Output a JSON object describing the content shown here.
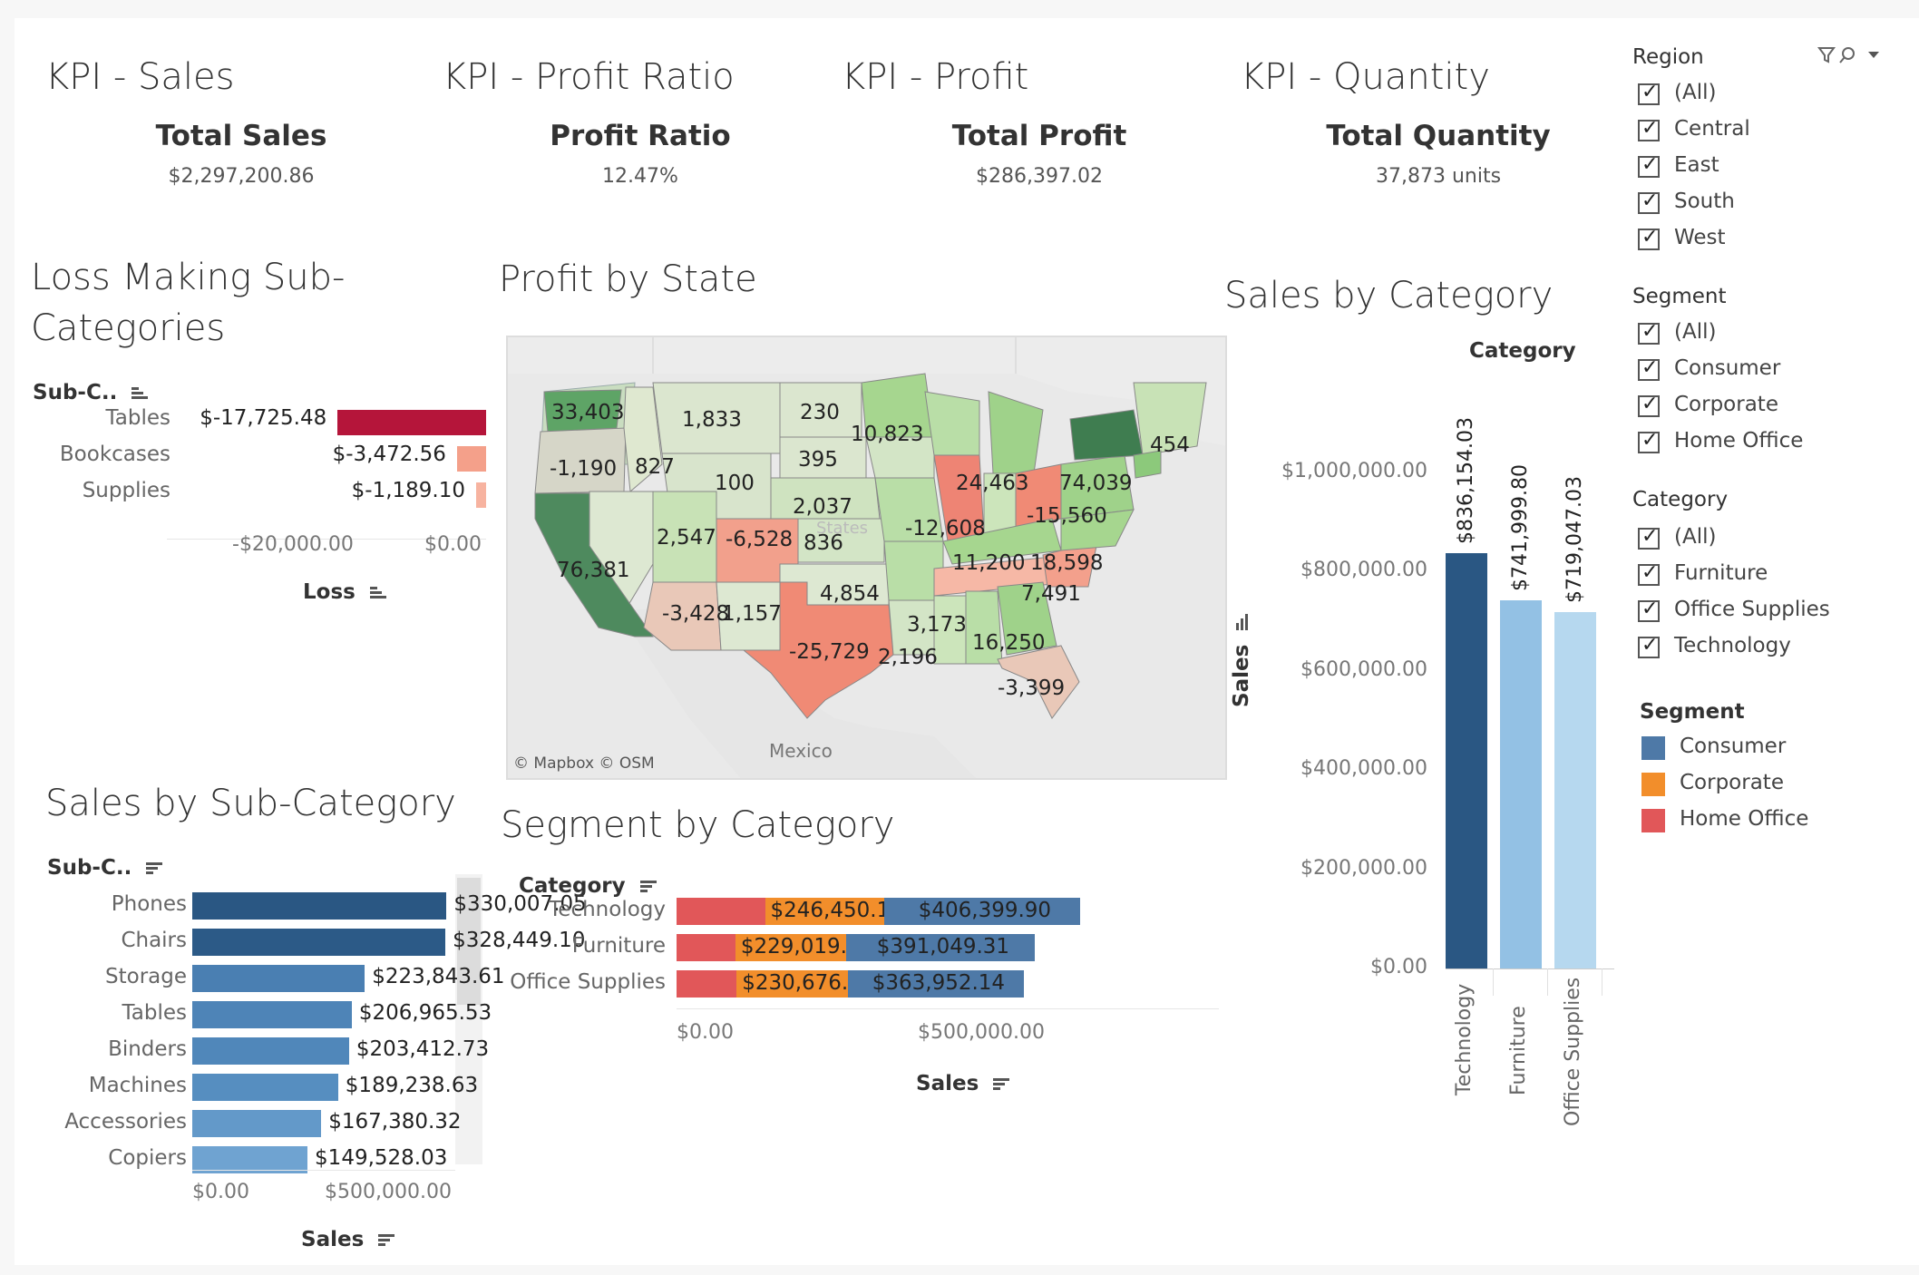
{
  "kpis": [
    {
      "title": "KPI - Sales",
      "label": "Total Sales",
      "value": "$2,297,200.86"
    },
    {
      "title": "KPI - Profit Ratio",
      "label": "Profit Ratio",
      "value": "12.47%"
    },
    {
      "title": "KPI - Profit",
      "label": "Total Profit",
      "value": "$286,397.02"
    },
    {
      "title": "KPI - Quantity",
      "label": "Total Quantity",
      "value": "37,873 units"
    }
  ],
  "loss": {
    "title": "Loss Making Sub-Categories",
    "header": "Sub-C..",
    "axis_label": "Loss",
    "ticks": [
      "-$20,000.00",
      "$0.00"
    ],
    "rows": [
      {
        "label": "Tables",
        "value": "$-17,725.48",
        "num": -17725.48,
        "color": "#b5153a"
      },
      {
        "label": "Bookcases",
        "value": "$-3,472.56",
        "num": -3472.56,
        "color": "#f4a08a"
      },
      {
        "label": "Supplies",
        "value": "$-1,189.10",
        "num": -1189.1,
        "color": "#f7b3a0"
      }
    ]
  },
  "map": {
    "title": "Profit by State",
    "attribution": "© Mapbox  © OSM",
    "country_label": "Mexico",
    "states_label": "States",
    "labels": [
      "33,403",
      "1,833",
      "230",
      "10,823",
      "454",
      "-1,190",
      "827",
      "395",
      "100",
      "24,463",
      "74,039",
      "2,037",
      "-12,608",
      "-15,560",
      "2,547",
      "-6,528",
      "836",
      "11,200",
      "18,598",
      "76,381",
      "4,854",
      "7,491",
      "-3,428",
      "1,157",
      "3,173",
      "-25,729",
      "2,196",
      "16,250",
      "-3,399"
    ]
  },
  "cat": {
    "title": "Sales by Category",
    "header": "Category",
    "axis_label": "Sales",
    "ticks": [
      "$1,000,000.00",
      "$800,000.00",
      "$600,000.00",
      "$400,000.00",
      "$200,000.00",
      "$0.00"
    ],
    "bars": [
      {
        "label": "Technology",
        "value": "$836,154.03",
        "num": 836154.03,
        "color": "#2a5783"
      },
      {
        "label": "Furniture",
        "value": "$741,999.80",
        "num": 741999.8,
        "color": "#93c1e4"
      },
      {
        "label": "Office Supplies",
        "value": "$719,047.03",
        "num": 719047.03,
        "color": "#b6d8ef"
      }
    ]
  },
  "subcat": {
    "title": "Sales by Sub-Category",
    "header": "Sub-C..",
    "axis_label": "Sales",
    "ticks": [
      "$0.00",
      "$500,000.00"
    ],
    "rows": [
      {
        "label": "Phones",
        "value": "$330,007.05",
        "num": 330007.05,
        "color": "#2a5783"
      },
      {
        "label": "Chairs",
        "value": "$328,449.10",
        "num": 328449.1,
        "color": "#2c5a87"
      },
      {
        "label": "Storage",
        "value": "$223,843.61",
        "num": 223843.61,
        "color": "#4a7fb2"
      },
      {
        "label": "Tables",
        "value": "$206,965.53",
        "num": 206965.53,
        "color": "#4e84b7"
      },
      {
        "label": "Binders",
        "value": "$203,412.73",
        "num": 203412.73,
        "color": "#5087ba"
      },
      {
        "label": "Machines",
        "value": "$189,238.63",
        "num": 189238.63,
        "color": "#568ec0"
      },
      {
        "label": "Accessories",
        "value": "$167,380.32",
        "num": 167380.32,
        "color": "#6399c9"
      },
      {
        "label": "Copiers",
        "value": "$149,528.03",
        "num": 149528.03,
        "color": "#6fa3d1"
      }
    ]
  },
  "seg": {
    "title": "Segment by Category",
    "header": "Category",
    "axis_label": "Sales",
    "ticks": [
      "$0.00",
      "$500,000.00"
    ],
    "rows": [
      {
        "label": "Technology",
        "home": 183304,
        "corporate": 246450.12,
        "consumer": 406399.9,
        "corp_label": "$246,450.12",
        "cons_label": "$406,399.90"
      },
      {
        "label": "Furniture",
        "home": 121930,
        "corporate": 229019.79,
        "consumer": 391049.31,
        "corp_label": "$229,019.79",
        "cons_label": "$391,049.31"
      },
      {
        "label": "Office Supplies",
        "home": 124418,
        "corporate": 230676.46,
        "consumer": 363952.14,
        "corp_label": "$230,676.46",
        "cons_label": "$363,952.14"
      }
    ],
    "colors": {
      "home": "#e15759",
      "corporate": "#f28e2b",
      "consumer": "#4e79a7"
    }
  },
  "filters": {
    "region": {
      "title": "Region",
      "items": [
        "(All)",
        "Central",
        "East",
        "South",
        "West"
      ]
    },
    "segment": {
      "title": "Segment",
      "items": [
        "(All)",
        "Consumer",
        "Corporate",
        "Home Office"
      ]
    },
    "category": {
      "title": "Category",
      "items": [
        "(All)",
        "Furniture",
        "Office Supplies",
        "Technology"
      ]
    },
    "legend": {
      "title": "Segment",
      "items": [
        {
          "label": "Consumer",
          "color": "#4e79a7"
        },
        {
          "label": "Corporate",
          "color": "#f28e2b"
        },
        {
          "label": "Home Office",
          "color": "#e15759"
        }
      ]
    }
  }
}
